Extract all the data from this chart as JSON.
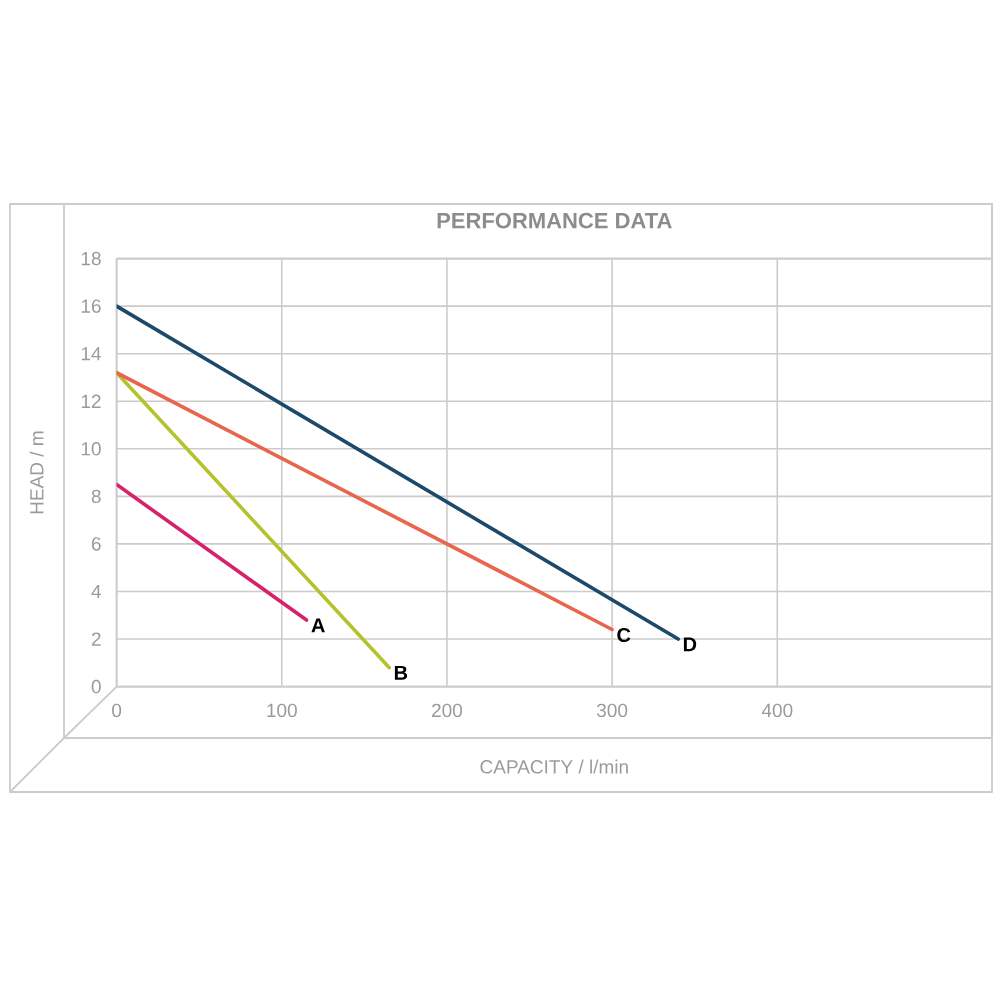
{
  "chart_data": {
    "type": "line",
    "title": "PERFORMANCE DATA",
    "xlabel": "CAPACITY / l/min",
    "ylabel": "HEAD / m",
    "series": [
      {
        "name": "A",
        "color": "#d6226c",
        "x": [
          0,
          115
        ],
        "values": [
          8.5,
          2.8
        ]
      },
      {
        "name": "B",
        "color": "#b5c22e",
        "x": [
          0,
          165
        ],
        "values": [
          13.2,
          0.8
        ]
      },
      {
        "name": "C",
        "color": "#e8654e",
        "x": [
          0,
          300
        ],
        "values": [
          13.2,
          2.4
        ]
      },
      {
        "name": "D",
        "color": "#1d4a6b",
        "x": [
          0,
          340
        ],
        "values": [
          16,
          2
        ]
      }
    ],
    "xlim": [
      0,
      530
    ],
    "ylim": [
      0,
      18
    ],
    "xticks": [
      0,
      100,
      200,
      300,
      400
    ],
    "yticks": [
      0,
      2,
      4,
      6,
      8,
      10,
      12,
      14,
      16,
      18
    ],
    "grid": true,
    "marker": "none",
    "line_style": "solid"
  }
}
